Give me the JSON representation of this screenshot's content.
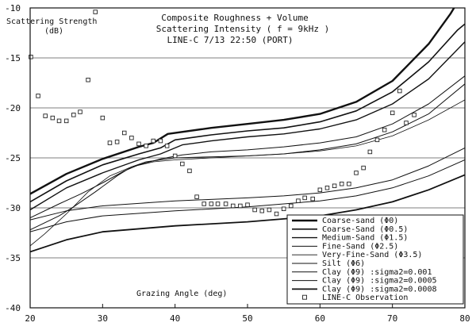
{
  "chart_data": {
    "type": "line",
    "title_lines": [
      "Composite Roughness + Volume",
      "Scattering Intensity  ( f = 9kHz )",
      "LINE-C 7/13 22:50 (PORT)"
    ],
    "ylabel_lines": [
      "Scattering Strength",
      "(dB)"
    ],
    "xlabel": "Grazing Angle (deg)",
    "xlim": [
      20,
      80
    ],
    "ylim": [
      -40,
      -10
    ],
    "x_ticks": [
      20,
      30,
      40,
      50,
      60,
      70,
      80
    ],
    "y_ticks": [
      -40,
      -35,
      -30,
      -25,
      -20,
      -15,
      -10
    ],
    "grid": "horizontal",
    "legend_position": "bottom-right",
    "series": [
      {
        "name": "Coarse-sand (Φ0)",
        "stroke": 2.4,
        "points": [
          [
            20,
            -28.6
          ],
          [
            25,
            -26.6
          ],
          [
            30,
            -25.1
          ],
          [
            35,
            -23.9
          ],
          [
            37,
            -23.5
          ],
          [
            39,
            -22.6
          ],
          [
            45,
            -22.0
          ],
          [
            50,
            -21.6
          ],
          [
            55,
            -21.2
          ],
          [
            60,
            -20.6
          ],
          [
            65,
            -19.4
          ],
          [
            70,
            -17.3
          ],
          [
            75,
            -13.6
          ],
          [
            78,
            -10.6
          ],
          [
            79,
            -9.4
          ]
        ]
      },
      {
        "name": "Coarse-Sand (Φ0.5)",
        "stroke": 1.6,
        "points": [
          [
            20,
            -29.4
          ],
          [
            25,
            -27.3
          ],
          [
            30,
            -25.7
          ],
          [
            35,
            -24.6
          ],
          [
            38,
            -24.0
          ],
          [
            40,
            -23.2
          ],
          [
            45,
            -22.7
          ],
          [
            50,
            -22.3
          ],
          [
            55,
            -22.0
          ],
          [
            60,
            -21.4
          ],
          [
            65,
            -20.3
          ],
          [
            70,
            -18.4
          ],
          [
            75,
            -15.4
          ],
          [
            79,
            -12.2
          ],
          [
            80,
            -11.6
          ]
        ]
      },
      {
        "name": "Medium-Sand (Φ1.5)",
        "stroke": 1.4,
        "points": [
          [
            20,
            -30.2
          ],
          [
            25,
            -28.0
          ],
          [
            30,
            -26.5
          ],
          [
            35,
            -25.2
          ],
          [
            38,
            -24.6
          ],
          [
            41,
            -23.7
          ],
          [
            45,
            -23.3
          ],
          [
            50,
            -22.9
          ],
          [
            55,
            -22.6
          ],
          [
            60,
            -22.1
          ],
          [
            65,
            -21.2
          ],
          [
            70,
            -19.6
          ],
          [
            75,
            -17.1
          ],
          [
            80,
            -13.4
          ]
        ]
      },
      {
        "name": "Fine-Sand (Φ2.5)",
        "stroke": 1.0,
        "points": [
          [
            20,
            -31.0
          ],
          [
            24,
            -29.6
          ],
          [
            27,
            -28.6
          ],
          [
            30,
            -27.5
          ],
          [
            33,
            -26.3
          ],
          [
            35,
            -25.7
          ],
          [
            38,
            -25.1
          ],
          [
            41,
            -24.7
          ],
          [
            45,
            -24.4
          ],
          [
            50,
            -24.2
          ],
          [
            55,
            -23.9
          ],
          [
            60,
            -23.5
          ],
          [
            65,
            -22.9
          ],
          [
            70,
            -21.6
          ],
          [
            75,
            -19.6
          ],
          [
            80,
            -16.8
          ]
        ]
      },
      {
        "name": "Very-Fine-Sand (Φ3.5)",
        "stroke": 0.8,
        "points": [
          [
            20,
            -33.8
          ],
          [
            22,
            -32.6
          ],
          [
            25,
            -30.6
          ],
          [
            28,
            -28.4
          ],
          [
            31,
            -26.8
          ],
          [
            34,
            -25.9
          ],
          [
            37,
            -25.4
          ],
          [
            40,
            -25.2
          ],
          [
            45,
            -25.0
          ],
          [
            50,
            -24.8
          ],
          [
            55,
            -24.6
          ],
          [
            60,
            -24.3
          ],
          [
            65,
            -23.8
          ],
          [
            70,
            -22.8
          ],
          [
            75,
            -21.2
          ],
          [
            80,
            -19.2
          ]
        ]
      },
      {
        "name": "Silt (Φ6)",
        "stroke": 1.0,
        "points": [
          [
            20,
            -32.2
          ],
          [
            24,
            -30.8
          ],
          [
            26,
            -29.9
          ],
          [
            29,
            -28.4
          ],
          [
            32,
            -26.8
          ],
          [
            34,
            -25.9
          ],
          [
            36,
            -25.4
          ],
          [
            38,
            -25.2
          ],
          [
            40,
            -25.0
          ],
          [
            45,
            -24.9
          ],
          [
            50,
            -24.8
          ],
          [
            55,
            -24.6
          ],
          [
            60,
            -24.2
          ],
          [
            65,
            -23.6
          ],
          [
            70,
            -22.4
          ],
          [
            75,
            -20.6
          ],
          [
            80,
            -17.6
          ]
        ]
      },
      {
        "name": "Clay (Φ9)  :sigma2=0.001",
        "stroke": 1.0,
        "points": [
          [
            20,
            -31.2
          ],
          [
            25,
            -30.3
          ],
          [
            30,
            -29.8
          ],
          [
            40,
            -29.3
          ],
          [
            50,
            -29.0
          ],
          [
            55,
            -28.8
          ],
          [
            60,
            -28.5
          ],
          [
            65,
            -28.0
          ],
          [
            70,
            -27.2
          ],
          [
            75,
            -25.8
          ],
          [
            80,
            -24.0
          ]
        ]
      },
      {
        "name": "Clay (Φ9)  :sigma2=0.0005",
        "stroke": 1.0,
        "points": [
          [
            20,
            -32.4
          ],
          [
            25,
            -31.4
          ],
          [
            30,
            -30.8
          ],
          [
            40,
            -30.3
          ],
          [
            50,
            -29.9
          ],
          [
            55,
            -29.6
          ],
          [
            60,
            -29.3
          ],
          [
            65,
            -28.8
          ],
          [
            70,
            -28.0
          ],
          [
            75,
            -26.8
          ],
          [
            80,
            -25.2
          ]
        ]
      },
      {
        "name": "Clay (Φ9)  :sigma2=0.0008",
        "stroke": 1.8,
        "points": [
          [
            20,
            -34.4
          ],
          [
            25,
            -33.2
          ],
          [
            30,
            -32.4
          ],
          [
            40,
            -31.8
          ],
          [
            50,
            -31.4
          ],
          [
            55,
            -31.1
          ],
          [
            60,
            -30.8
          ],
          [
            65,
            -30.2
          ],
          [
            70,
            -29.4
          ],
          [
            75,
            -28.2
          ],
          [
            80,
            -26.7
          ]
        ]
      }
    ],
    "observations": {
      "name": "LINE-C Observation",
      "points": [
        [
          20.1,
          -14.9
        ],
        [
          21.1,
          -18.8
        ],
        [
          22.1,
          -20.8
        ],
        [
          23.1,
          -21.0
        ],
        [
          24.0,
          -21.3
        ],
        [
          25.0,
          -21.3
        ],
        [
          26.0,
          -20.7
        ],
        [
          26.9,
          -20.4
        ],
        [
          28.0,
          -17.2
        ],
        [
          29.0,
          -10.4
        ],
        [
          30.0,
          -21.0
        ],
        [
          31.0,
          -23.5
        ],
        [
          32.0,
          -23.4
        ],
        [
          33.0,
          -22.5
        ],
        [
          34.0,
          -23.0
        ],
        [
          35.0,
          -23.6
        ],
        [
          36.0,
          -23.8
        ],
        [
          37.0,
          -23.3
        ],
        [
          38.0,
          -23.3
        ],
        [
          38.9,
          -23.8
        ],
        [
          40.0,
          -24.8
        ],
        [
          41.0,
          -25.6
        ],
        [
          42.0,
          -26.3
        ],
        [
          43.0,
          -28.9
        ],
        [
          44.0,
          -29.6
        ],
        [
          45.0,
          -29.6
        ],
        [
          45.9,
          -29.6
        ],
        [
          47.0,
          -29.6
        ],
        [
          48.0,
          -29.8
        ],
        [
          49.0,
          -29.8
        ],
        [
          50.0,
          -29.7
        ],
        [
          51.0,
          -30.2
        ],
        [
          52.0,
          -30.3
        ],
        [
          53.0,
          -30.2
        ],
        [
          54.0,
          -30.6
        ],
        [
          55.0,
          -30.1
        ],
        [
          56.0,
          -29.8
        ],
        [
          57.0,
          -29.3
        ],
        [
          57.9,
          -29.0
        ],
        [
          59.0,
          -29.1
        ],
        [
          60.0,
          -28.2
        ],
        [
          61.0,
          -28.0
        ],
        [
          62.0,
          -27.8
        ],
        [
          63.0,
          -27.6
        ],
        [
          64.0,
          -27.6
        ],
        [
          65.0,
          -26.5
        ],
        [
          66.0,
          -26.0
        ],
        [
          66.9,
          -24.4
        ],
        [
          67.9,
          -23.2
        ],
        [
          68.9,
          -22.2
        ],
        [
          70.0,
          -20.5
        ],
        [
          71.0,
          -18.3
        ],
        [
          71.9,
          -21.5
        ],
        [
          73.0,
          -20.7
        ]
      ]
    },
    "legend": [
      "Coarse-sand (Φ0)",
      "Coarse-Sand (Φ0.5)",
      "Medium-Sand (Φ1.5)",
      "Fine-Sand (Φ2.5)",
      "Very-Fine-Sand (Φ3.5)",
      "Silt (Φ6)",
      "Clay (Φ9)  :sigma2=0.001",
      "Clay (Φ9)  :sigma2=0.0005",
      "Clay (Φ9)  :sigma2=0.0008",
      "LINE-C Observation"
    ]
  }
}
